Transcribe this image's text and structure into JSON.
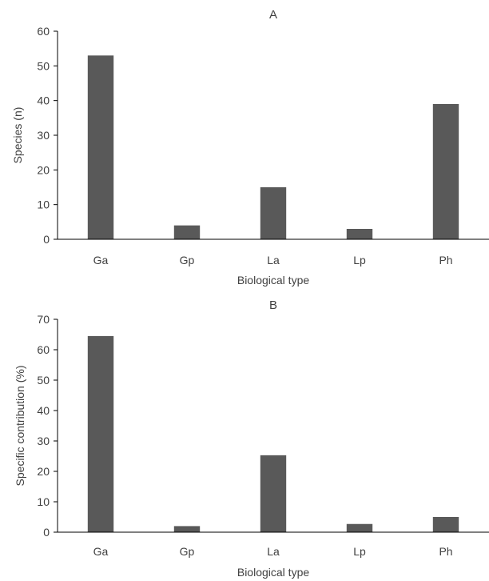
{
  "chart_data": [
    {
      "type": "bar",
      "title": "A",
      "xlabel": "Biological type",
      "ylabel": "Species (n)",
      "categories": [
        "Ga",
        "Gp",
        "La",
        "Lp",
        "Ph"
      ],
      "values": [
        53,
        4,
        15,
        3,
        39
      ],
      "ylim": [
        0,
        60
      ],
      "yticks": [
        0,
        10,
        20,
        30,
        40,
        50,
        60
      ],
      "grid": false,
      "bar_color": "#595959"
    },
    {
      "type": "bar",
      "title": "B",
      "xlabel": "Biological type",
      "ylabel": "Specific contribution (%)",
      "categories": [
        "Ga",
        "Gp",
        "La",
        "Lp",
        "Ph"
      ],
      "values": [
        64.5,
        2,
        25.3,
        2.7,
        5
      ],
      "ylim": [
        0,
        70
      ],
      "yticks": [
        0,
        10,
        20,
        30,
        40,
        50,
        60,
        70
      ],
      "grid": false,
      "bar_color": "#595959"
    }
  ]
}
